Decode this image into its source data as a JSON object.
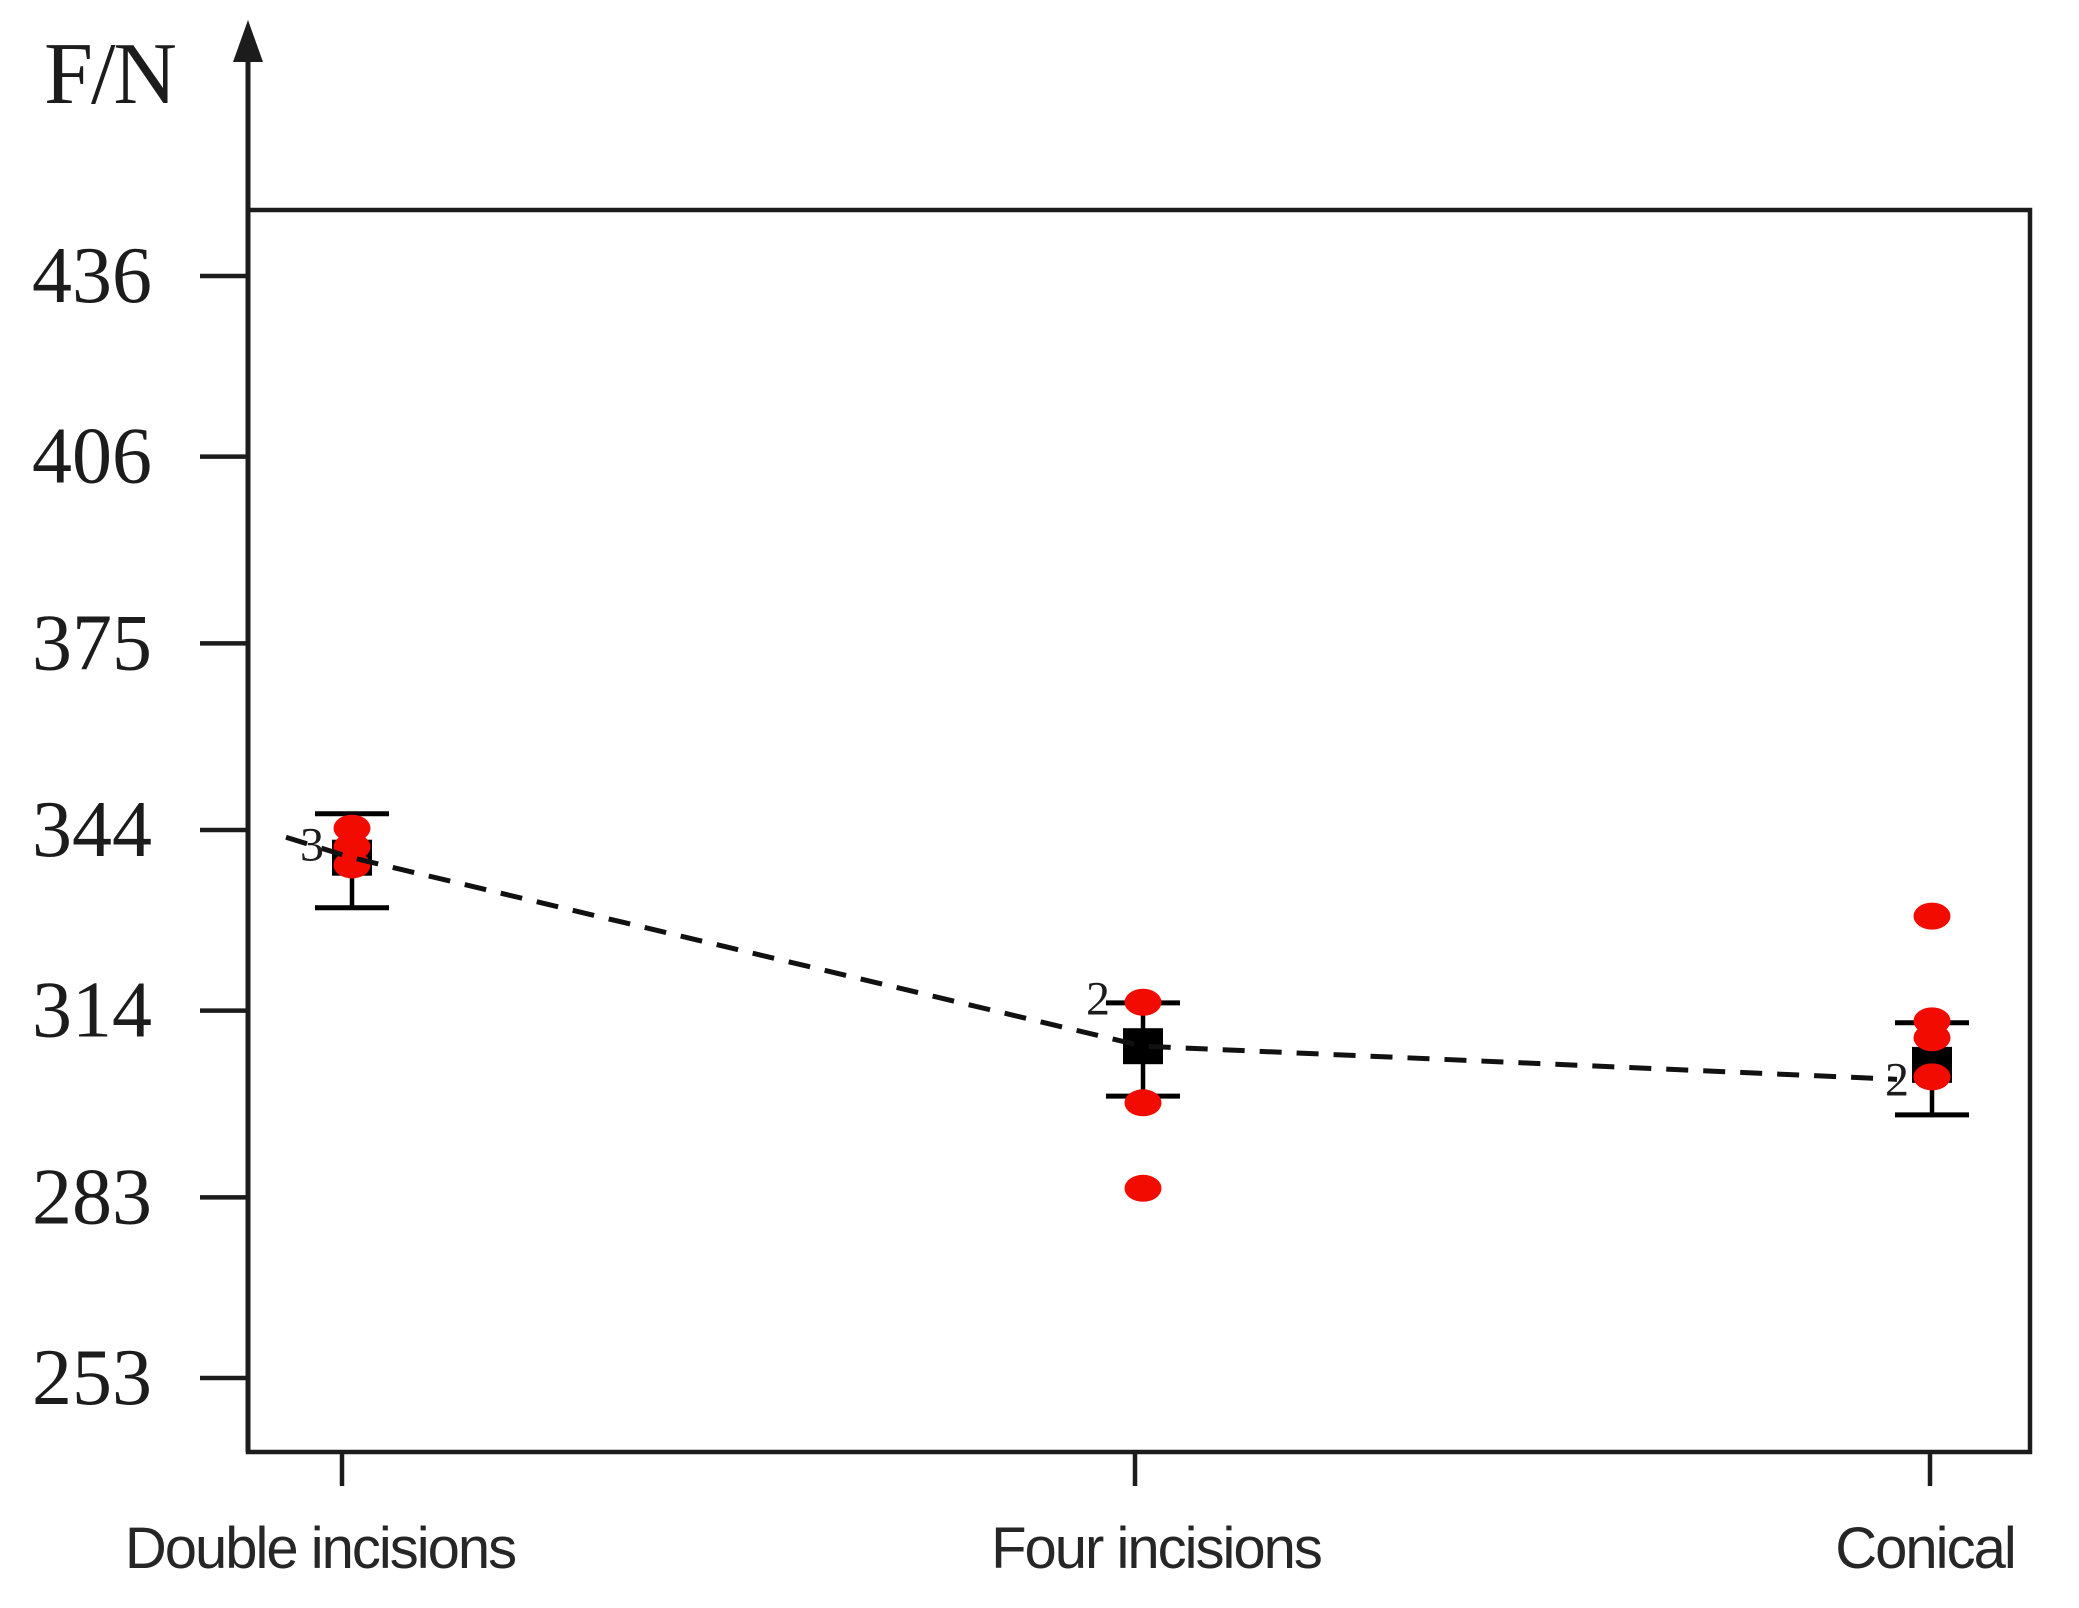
{
  "figure": {
    "background": "#ffffff",
    "axis_color": "#1c1c1c",
    "mean_marker_color": "#000000",
    "data_point_color": "#f20b00",
    "text_color": "#1c1c1c"
  },
  "chart_data": {
    "type": "scatter",
    "title": "",
    "xlabel": "",
    "ylabel": "F/N",
    "categories": [
      "Double incisions",
      "Four incisions",
      "Conical"
    ],
    "y_ticks": [
      436,
      406,
      375,
      344,
      314,
      283,
      253
    ],
    "ylim": [
      241,
      447
    ],
    "grid": false,
    "legend": false,
    "series": [
      {
        "name": "mean",
        "marker": "black-square",
        "values": [
          339.4,
          308.1,
          305.0
        ]
      },
      {
        "name": "error-upper-cap",
        "marker": "cap",
        "values": [
          346.7,
          315.3,
          312.0
        ]
      },
      {
        "name": "error-lower-cap",
        "marker": "cap",
        "values": [
          331.1,
          299.8,
          296.7
        ]
      },
      {
        "name": "measurements",
        "marker": "red-dot",
        "points_by_category": [
          [
            344.3,
            341.2,
            338.2
          ],
          [
            315.4,
            298.7,
            284.5
          ],
          [
            329.7,
            312.3,
            309.5,
            303.0
          ]
        ]
      }
    ],
    "overlap_count_annotations": [
      {
        "text": "3",
        "category_index": 0,
        "value": 341.5
      },
      {
        "text": "2",
        "category_index": 1,
        "value": 315.9
      },
      {
        "text": "2",
        "category_index": 2,
        "value": 302.5
      }
    ],
    "trend_line": {
      "style": "dashed",
      "connects": "mean",
      "lead_in_value": 342.8,
      "end_value": 302.6
    }
  }
}
